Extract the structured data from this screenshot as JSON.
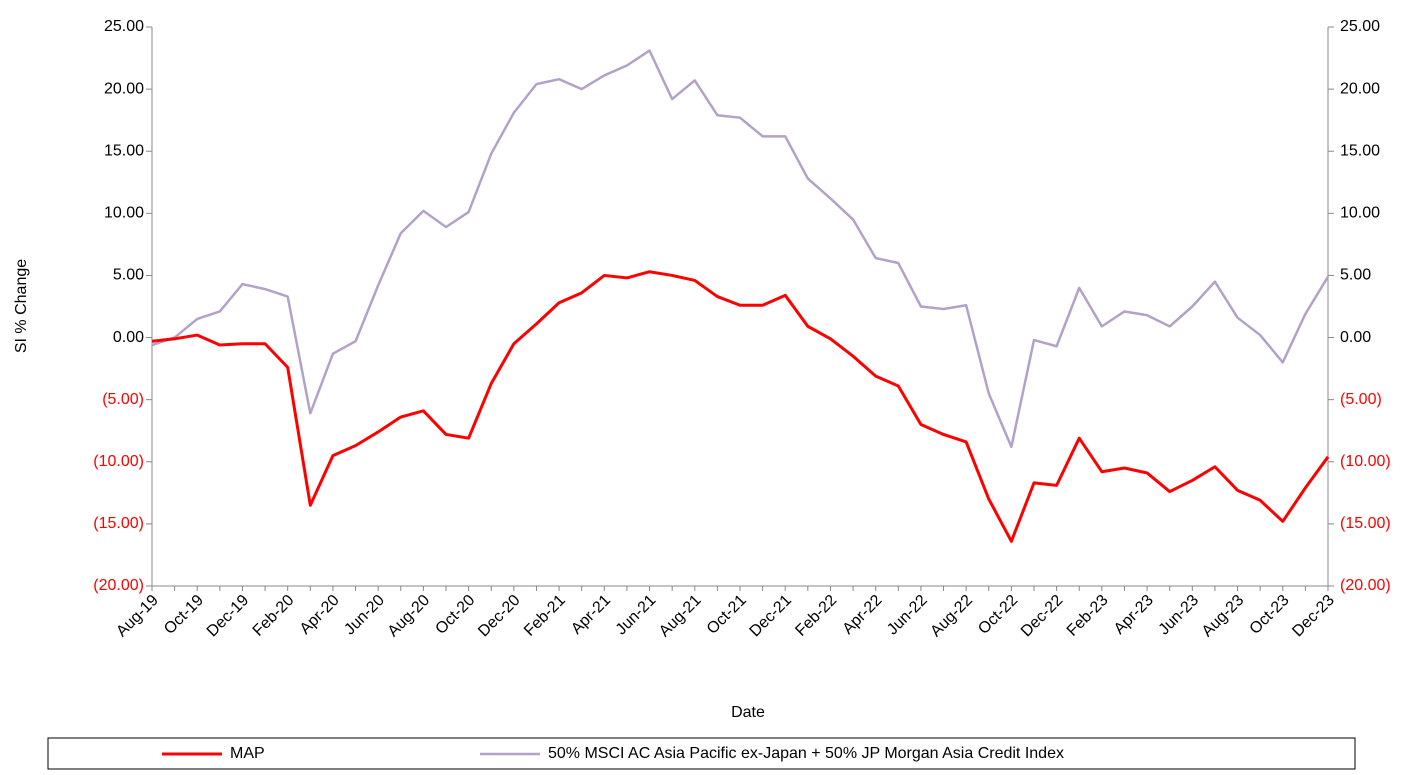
{
  "chart_data": {
    "type": "line",
    "x_label": "Date",
    "y_label": "SI % Change",
    "categories": [
      "Aug-19",
      null,
      "Oct-19",
      null,
      "Dec-19",
      null,
      "Feb-20",
      null,
      "Apr-20",
      null,
      "Jun-20",
      null,
      "Aug-20",
      null,
      "Oct-20",
      null,
      "Dec-20",
      null,
      "Feb-21",
      null,
      "Apr-21",
      null,
      "Jun-21",
      null,
      "Aug-21",
      null,
      "Oct-21",
      null,
      "Dec-21",
      null,
      "Feb-22",
      null,
      "Apr-22",
      null,
      "Jun-22",
      null,
      "Aug-22",
      null,
      "Oct-22",
      null,
      "Dec-22",
      null,
      "Feb-23",
      null,
      "Apr-23",
      null,
      "Jun-23",
      null,
      "Aug-23",
      null,
      "Oct-23",
      null,
      "Dec-23"
    ],
    "series": [
      {
        "name": "MAP",
        "color": "#ff0000",
        "values": [
          -0.3,
          -0.1,
          0.2,
          -0.6,
          -0.5,
          -0.5,
          -2.4,
          -13.5,
          -9.5,
          -8.7,
          -7.6,
          -6.4,
          -5.9,
          -7.8,
          -8.1,
          -3.7,
          -0.5,
          1.1,
          2.8,
          3.6,
          5.0,
          4.8,
          5.3,
          5.0,
          4.6,
          3.3,
          2.6,
          2.6,
          3.4,
          0.9,
          -0.1,
          -1.5,
          -3.1,
          -3.9,
          -7.0,
          -7.8,
          -8.4,
          -13.0,
          -16.4,
          -11.7,
          -11.9,
          -8.1,
          -10.8,
          -10.5,
          -10.9,
          -12.4,
          -11.5,
          -10.4,
          -12.3,
          -13.1,
          -14.8,
          -12.1,
          -9.6
        ]
      },
      {
        "name": "50% MSCI AC Asia Pacific ex-Japan + 50% JP Morgan Asia Credit Index",
        "color": "#b3a2c7",
        "values": [
          -0.6,
          0.0,
          1.5,
          2.1,
          4.3,
          3.9,
          3.3,
          -6.1,
          -1.3,
          -0.3,
          4.2,
          8.4,
          10.2,
          8.9,
          10.1,
          14.8,
          18.1,
          20.4,
          20.8,
          20.0,
          21.1,
          21.9,
          23.1,
          19.2,
          20.7,
          17.9,
          17.7,
          16.2,
          16.2,
          12.8,
          11.2,
          9.5,
          6.4,
          6.0,
          2.5,
          2.3,
          2.6,
          -4.5,
          -8.8,
          -0.2,
          -0.7,
          4.0,
          0.9,
          2.1,
          1.8,
          0.9,
          2.5,
          4.5,
          1.6,
          0.2,
          -2.0,
          1.9,
          4.9
        ]
      }
    ],
    "ylim": [
      -20,
      25
    ],
    "yticks": [
      {
        "value": -20,
        "label": "(20.00)"
      },
      {
        "value": -15,
        "label": "(15.00)"
      },
      {
        "value": -10,
        "label": "(10.00)"
      },
      {
        "value": -5,
        "label": "(5.00)"
      },
      {
        "value": 0,
        "label": "0.00"
      },
      {
        "value": 5,
        "label": "5.00"
      },
      {
        "value": 10,
        "label": "10.00"
      },
      {
        "value": 15,
        "label": "15.00"
      },
      {
        "value": 20,
        "label": "20.00"
      },
      {
        "value": 25,
        "label": "25.00"
      }
    ],
    "y2lim": [
      -20,
      25
    ],
    "y2ticks": [
      {
        "value": -20,
        "label": "(20.00)"
      },
      {
        "value": -15,
        "label": "(15.00)"
      },
      {
        "value": -10,
        "label": "(10.00)"
      },
      {
        "value": -5,
        "label": "(5.00)"
      },
      {
        "value": 0,
        "label": "0.00"
      },
      {
        "value": 5,
        "label": "5.00"
      },
      {
        "value": 10,
        "label": "10.00"
      },
      {
        "value": 15,
        "label": "15.00"
      },
      {
        "value": 20,
        "label": "20.00"
      },
      {
        "value": 25,
        "label": "25.00"
      }
    ],
    "negative_tick_color": "#ff0000",
    "grid": false,
    "legend": "bottom"
  }
}
